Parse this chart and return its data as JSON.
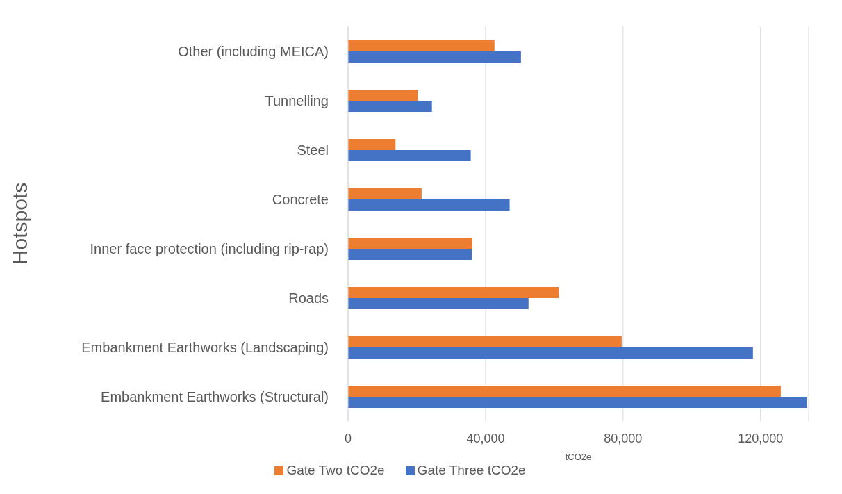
{
  "chart_data": {
    "type": "bar",
    "orientation": "horizontal",
    "ylabel": "Hotspots",
    "xlabel": "tCO2e",
    "categories": [
      "Other (including MEICA)",
      "Tunnelling",
      "Steel",
      "Concrete",
      "Inner face protection (including rip-rap)",
      "Roads",
      "Embankment Earthworks (Landscaping)",
      "Embankment Earthworks (Structural)"
    ],
    "series": [
      {
        "name": "Gate Two tCO2e",
        "color": "#ed7d31",
        "values": [
          42600,
          20300,
          13800,
          21400,
          36100,
          61300,
          79600,
          125900
        ]
      },
      {
        "name": "Gate Three tCO2e",
        "color": "#4472c4",
        "values": [
          50300,
          24400,
          35700,
          47000,
          36000,
          52500,
          117800,
          133500
        ]
      }
    ],
    "xlim": [
      0,
      134000
    ],
    "xticks": [
      {
        "value": 0,
        "label": "0"
      },
      {
        "value": 40000,
        "label": "40,000"
      },
      {
        "value": 80000,
        "label": "80,000"
      },
      {
        "value": 120000,
        "label": "120,000"
      }
    ],
    "grid": "x",
    "legend": "bottom"
  }
}
